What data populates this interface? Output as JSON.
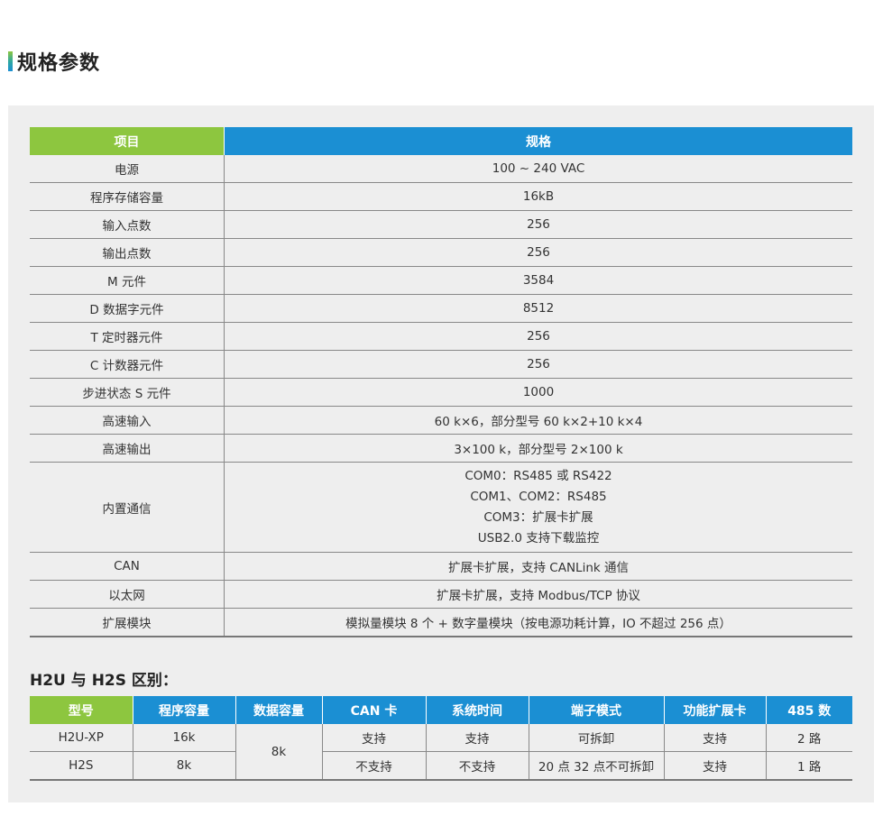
{
  "section": {
    "title": "规格参数"
  },
  "spec": {
    "headers": [
      "项目",
      "规格"
    ],
    "rows": [
      {
        "item": "电源",
        "value": "100 ~ 240 VAC"
      },
      {
        "item": "程序存储容量",
        "value": "16kB"
      },
      {
        "item": "输入点数",
        "value": "256"
      },
      {
        "item": "输出点数",
        "value": "256"
      },
      {
        "item": "M 元件",
        "value": "3584"
      },
      {
        "item": "D 数据字元件",
        "value": "8512"
      },
      {
        "item": "T 定时器元件",
        "value": "256"
      },
      {
        "item": "C 计数器元件",
        "value": "256"
      },
      {
        "item": "步进状态 S 元件",
        "value": "1000"
      },
      {
        "item": "高速输入",
        "value": "60 k×6，部分型号 60 k×2+10 k×4"
      },
      {
        "item": "高速输出",
        "value": "3×100 k，部分型号 2×100 k"
      },
      {
        "item": "内置通信",
        "lines": [
          "COM0：RS485 或 RS422",
          "COM1、COM2：RS485",
          "COM3：扩展卡扩展",
          "USB2.0 支持下载监控"
        ]
      },
      {
        "item": "CAN",
        "value": "扩展卡扩展，支持 CANLink 通信"
      },
      {
        "item": "以太网",
        "value": "扩展卡扩展，支持 Modbus/TCP 协议"
      },
      {
        "item": "扩展模块",
        "value": "模拟量模块 8 个 + 数字量模块（按电源功耗计算，IO 不超过 256 点）"
      }
    ]
  },
  "compare": {
    "title": "H2U 与 H2S 区别：",
    "headers": [
      "型号",
      "程序容量",
      "数据容量",
      "CAN 卡",
      "系统时间",
      "端子模式",
      "功能扩展卡",
      "485 数"
    ],
    "data_capacity_shared": "8k",
    "rows": [
      {
        "model": "H2U-XP",
        "program": "16k",
        "can": "支持",
        "clock": "支持",
        "terminal": "可拆卸",
        "ext_card": "支持",
        "rs485": "2 路"
      },
      {
        "model": "H2S",
        "program": "8k",
        "can": "不支持",
        "clock": "不支持",
        "terminal": "20 点 32 点不可拆卸",
        "ext_card": "支持",
        "rs485": "1 路"
      }
    ]
  },
  "colors": {
    "green": "#8dc63f",
    "blue": "#1b8fd3",
    "panel": "#eeeeee"
  }
}
